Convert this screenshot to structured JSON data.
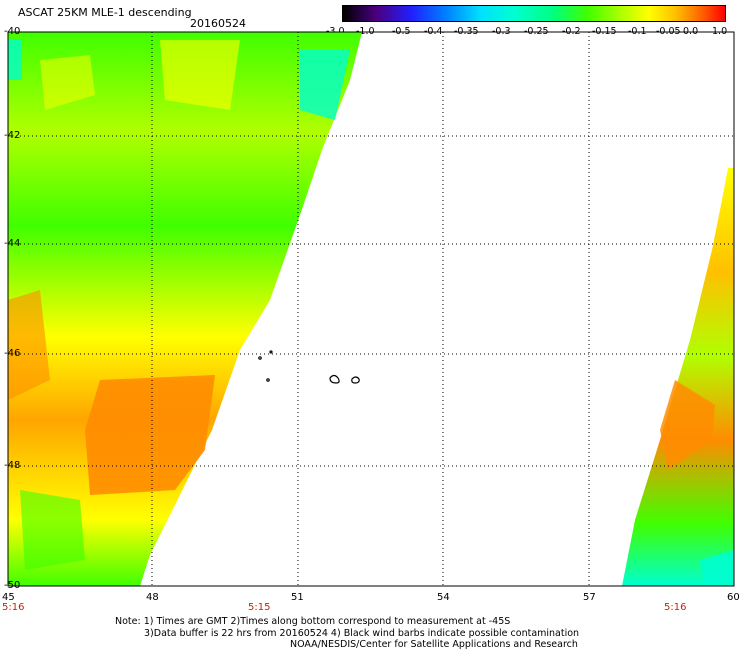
{
  "header": {
    "title": "ASCAT 25KM MLE-1 descending",
    "date": "20160524"
  },
  "colorbar": {
    "labels": [
      "-3.0",
      "-1.0",
      "-0.5",
      "-0.4",
      "-0.35",
      "-0.3",
      "-0.25",
      "-0.2",
      "-0.15",
      "-0.1",
      "-0.05",
      "0.0",
      "1.0"
    ],
    "colors": [
      "#000000",
      "#4b0082",
      "#2020ff",
      "#0080ff",
      "#00e0ff",
      "#00ffd0",
      "#00ff80",
      "#40ff00",
      "#b0ff00",
      "#ffff00",
      "#ffc000",
      "#ff6000",
      "#ff0000"
    ]
  },
  "axes": {
    "y_labels": [
      "-40",
      "-42",
      "-44",
      "-46",
      "-48",
      "-50"
    ],
    "x_labels": [
      "45",
      "48",
      "51",
      "54",
      "57",
      "60"
    ],
    "time_labels": [
      "5:16",
      "5:15",
      "5:16"
    ]
  },
  "notes": {
    "line1": "Note: 1) Times are GMT 2)Times along bottom correspond to measurement at -45S",
    "line2": "3)Data buffer is 22 hrs from 20160524 4) Black wind barbs indicate possible contamination",
    "credit": "NOAA/NESDIS/Center for Satellite Applications and Research"
  },
  "map": {
    "lat_range": [
      -50,
      -40
    ],
    "lon_range": [
      45,
      60
    ],
    "palette": {
      "orange": "#ff8c00",
      "yellow": "#ffff00",
      "green": "#40ff00",
      "cyan": "#00ffd0"
    }
  }
}
